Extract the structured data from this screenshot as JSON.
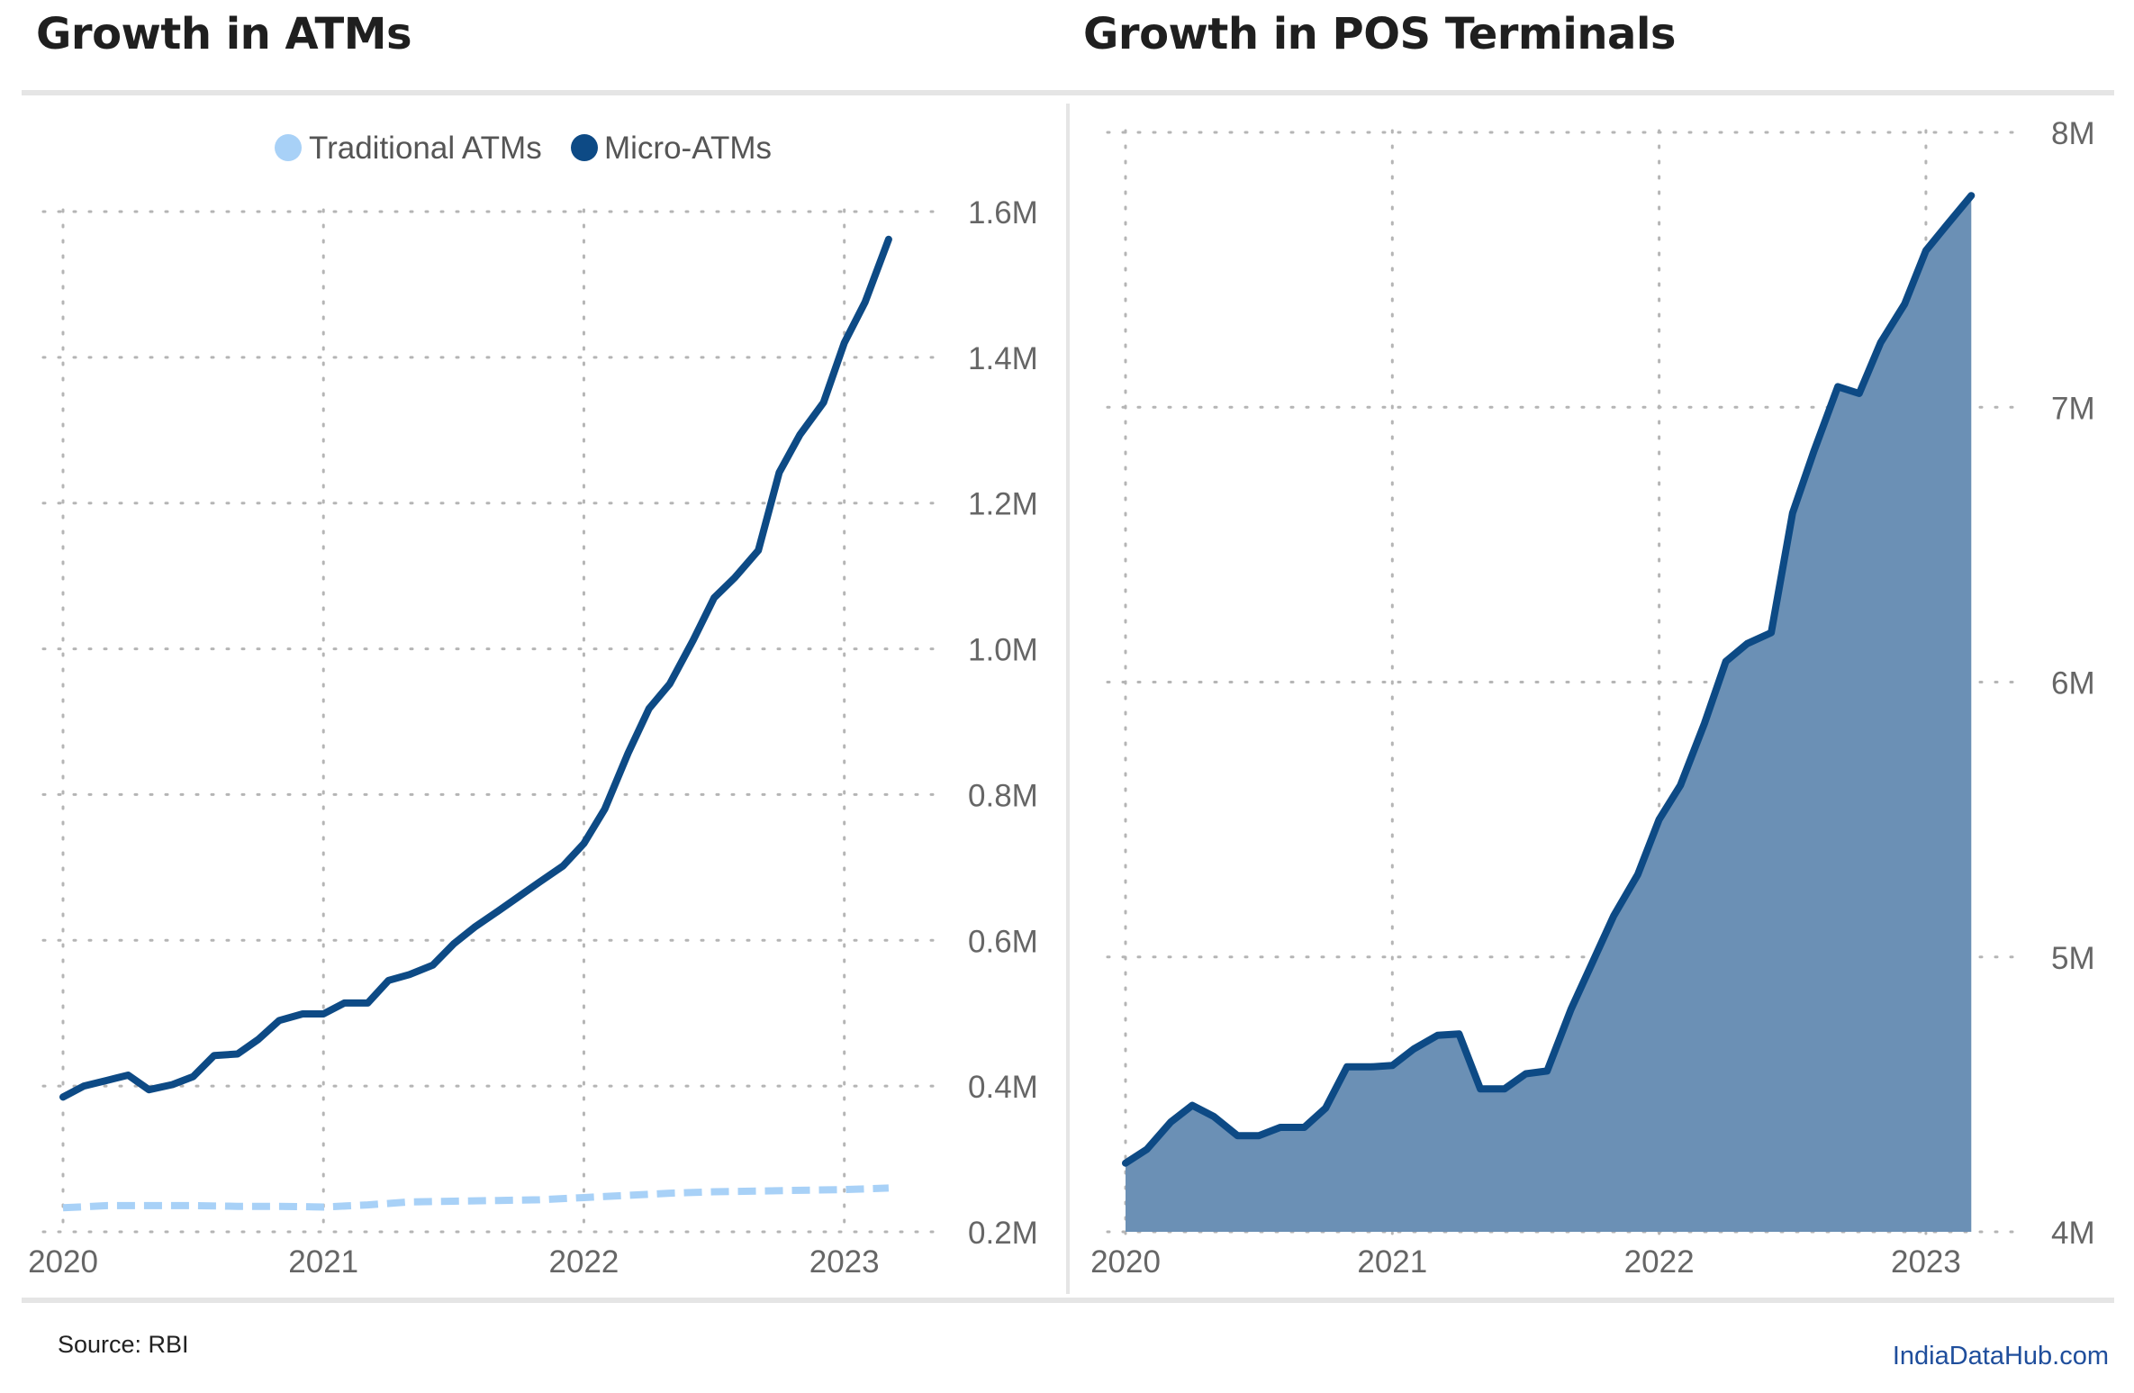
{
  "charts": {
    "left_title": "Growth in ATMs",
    "right_title": "Growth in POS Terminals"
  },
  "footer": {
    "source": "Source: RBI",
    "brand": "IndiaDataHub.com"
  },
  "chart_data": [
    {
      "type": "line",
      "title": "Growth in ATMs",
      "xlabel": "",
      "ylabel": "",
      "x_ticks": [
        "2020",
        "2021",
        "2022",
        "2023"
      ],
      "x_range": [
        2020,
        2023.25
      ],
      "ylim": [
        200000,
        1600000
      ],
      "y_ticks": [
        {
          "value": 200000,
          "label": "0.2M"
        },
        {
          "value": 400000,
          "label": "0.4M"
        },
        {
          "value": 600000,
          "label": "0.6M"
        },
        {
          "value": 800000,
          "label": "0.8M"
        },
        {
          "value": 1000000,
          "label": "1.0M"
        },
        {
          "value": 1200000,
          "label": "1.2M"
        },
        {
          "value": 1400000,
          "label": "1.4M"
        },
        {
          "value": 1600000,
          "label": "1.6M"
        }
      ],
      "grid": true,
      "legend_position": "top",
      "series": [
        {
          "name": "Traditional ATMs",
          "color": "#a8d1f7",
          "style": "dashed",
          "points": [
            [
              2020.0,
              233000
            ],
            [
              2020.17,
              236000
            ],
            [
              2020.33,
              236000
            ],
            [
              2020.5,
              236000
            ],
            [
              2020.67,
              235000
            ],
            [
              2020.83,
              235000
            ],
            [
              2021.0,
              234000
            ],
            [
              2021.17,
              237000
            ],
            [
              2021.33,
              241000
            ],
            [
              2021.5,
              242000
            ],
            [
              2021.67,
              243000
            ],
            [
              2021.83,
              244000
            ],
            [
              2022.0,
              247000
            ],
            [
              2022.17,
              250000
            ],
            [
              2022.33,
              253000
            ],
            [
              2022.5,
              255000
            ],
            [
              2022.67,
              256000
            ],
            [
              2022.83,
              257000
            ],
            [
              2023.0,
              258000
            ],
            [
              2023.17,
              260000
            ]
          ]
        },
        {
          "name": "Micro-ATMs",
          "color": "#0d4a85",
          "style": "solid",
          "points": [
            [
              2020.0,
              385000
            ],
            [
              2020.08,
              400000
            ],
            [
              2020.17,
              408000
            ],
            [
              2020.25,
              415000
            ],
            [
              2020.33,
              395000
            ],
            [
              2020.42,
              402000
            ],
            [
              2020.5,
              413000
            ],
            [
              2020.58,
              442000
            ],
            [
              2020.67,
              444000
            ],
            [
              2020.75,
              464000
            ],
            [
              2020.83,
              490000
            ],
            [
              2020.92,
              499000
            ],
            [
              2021.0,
              499000
            ],
            [
              2021.08,
              514000
            ],
            [
              2021.17,
              514000
            ],
            [
              2021.25,
              545000
            ],
            [
              2021.33,
              553000
            ],
            [
              2021.42,
              566000
            ],
            [
              2021.5,
              595000
            ],
            [
              2021.58,
              618000
            ],
            [
              2021.67,
              640000
            ],
            [
              2021.75,
              660000
            ],
            [
              2021.83,
              680000
            ],
            [
              2021.92,
              702000
            ],
            [
              2022.0,
              733000
            ],
            [
              2022.08,
              780000
            ],
            [
              2022.17,
              857000
            ],
            [
              2022.25,
              918000
            ],
            [
              2022.33,
              952000
            ],
            [
              2022.42,
              1012000
            ],
            [
              2022.5,
              1070000
            ],
            [
              2022.58,
              1098000
            ],
            [
              2022.67,
              1135000
            ],
            [
              2022.75,
              1242000
            ],
            [
              2022.83,
              1294000
            ],
            [
              2022.92,
              1338000
            ],
            [
              2023.0,
              1420000
            ],
            [
              2023.08,
              1476000
            ],
            [
              2023.17,
              1562000
            ]
          ]
        }
      ]
    },
    {
      "type": "area",
      "title": "Growth in POS Terminals",
      "xlabel": "",
      "ylabel": "",
      "x_ticks": [
        "2020",
        "2021",
        "2022",
        "2023"
      ],
      "x_range": [
        2020,
        2023.25
      ],
      "ylim": [
        4000000,
        8000000
      ],
      "y_ticks": [
        {
          "value": 4000000,
          "label": "4M"
        },
        {
          "value": 5000000,
          "label": "5M"
        },
        {
          "value": 6000000,
          "label": "6M"
        },
        {
          "value": 7000000,
          "label": "7M"
        },
        {
          "value": 8000000,
          "label": "8M"
        }
      ],
      "grid": true,
      "series": [
        {
          "name": "",
          "color": "#0d4a85",
          "fill": "#6b90b5",
          "points": [
            [
              2020.0,
              4250000
            ],
            [
              2020.08,
              4300000
            ],
            [
              2020.17,
              4400000
            ],
            [
              2020.25,
              4460000
            ],
            [
              2020.33,
              4420000
            ],
            [
              2020.42,
              4350000
            ],
            [
              2020.5,
              4350000
            ],
            [
              2020.58,
              4380000
            ],
            [
              2020.67,
              4380000
            ],
            [
              2020.75,
              4450000
            ],
            [
              2020.83,
              4600000
            ],
            [
              2020.92,
              4600000
            ],
            [
              2021.0,
              4605000
            ],
            [
              2021.08,
              4665000
            ],
            [
              2021.17,
              4715000
            ],
            [
              2021.25,
              4720000
            ],
            [
              2021.33,
              4520000
            ],
            [
              2021.42,
              4520000
            ],
            [
              2021.5,
              4575000
            ],
            [
              2021.58,
              4585000
            ],
            [
              2021.67,
              4810000
            ],
            [
              2021.75,
              4980000
            ],
            [
              2021.83,
              5150000
            ],
            [
              2021.92,
              5300000
            ],
            [
              2022.0,
              5500000
            ],
            [
              2022.08,
              5625000
            ],
            [
              2022.17,
              5850000
            ],
            [
              2022.25,
              6075000
            ],
            [
              2022.33,
              6140000
            ],
            [
              2022.42,
              6180000
            ],
            [
              2022.5,
              6615000
            ],
            [
              2022.58,
              6840000
            ],
            [
              2022.67,
              7075000
            ],
            [
              2022.75,
              7050000
            ],
            [
              2022.83,
              7235000
            ],
            [
              2022.92,
              7375000
            ],
            [
              2023.0,
              7570000
            ],
            [
              2023.08,
              7665000
            ],
            [
              2023.17,
              7770000
            ]
          ]
        }
      ]
    }
  ]
}
